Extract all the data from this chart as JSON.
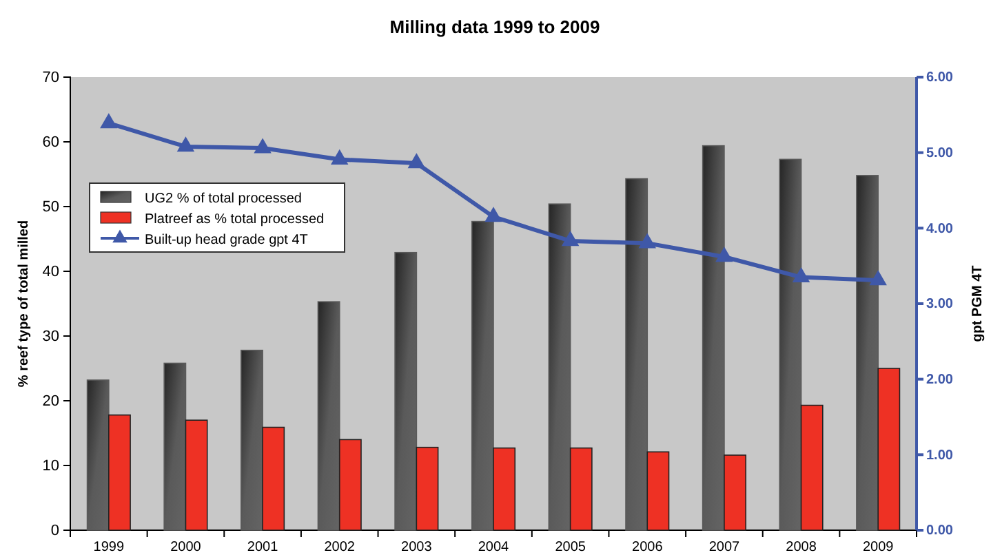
{
  "chart_data": {
    "type": "bar",
    "title": "Milling data 1999 to 2009",
    "ylabel": "% reef type of total milled",
    "y2label": "gpt PGM 4T",
    "categories": [
      "1999",
      "2000",
      "2001",
      "2002",
      "2003",
      "2004",
      "2005",
      "2006",
      "2007",
      "2008",
      "2009"
    ],
    "series": [
      {
        "name": "UG2 % of total processed",
        "color": "#5a5a5a",
        "values": [
          23.2,
          25.8,
          27.8,
          35.3,
          42.9,
          47.7,
          50.4,
          54.3,
          59.4,
          57.3,
          54.8
        ]
      },
      {
        "name": "Platreef as % total processed",
        "color": "#ee3124",
        "values": [
          17.8,
          17.0,
          15.9,
          14.0,
          12.8,
          12.7,
          12.7,
          12.1,
          11.6,
          19.3,
          25.0
        ]
      },
      {
        "name": "Built-up head grade gpt 4T",
        "type": "line",
        "axis": "y2",
        "color": "#3f58a8",
        "marker": "triangle",
        "values": [
          5.39,
          5.08,
          5.06,
          4.91,
          4.86,
          4.15,
          3.83,
          3.8,
          3.62,
          3.35,
          3.31
        ]
      }
    ],
    "ylim": [
      0,
      70
    ],
    "yticks": [
      0,
      10,
      20,
      30,
      40,
      50,
      60,
      70
    ],
    "y2lim": [
      0,
      6
    ],
    "y2ticks": [
      {
        "value": 0,
        "label": "0.00"
      },
      {
        "value": 1,
        "label": "1.00"
      },
      {
        "value": 2,
        "label": "2.00"
      },
      {
        "value": 3,
        "label": "3.00"
      },
      {
        "value": 4,
        "label": "4.00"
      },
      {
        "value": 5,
        "label": "5.00"
      },
      {
        "value": 6,
        "label": "6.00"
      }
    ],
    "legend": "left",
    "grid": false
  }
}
